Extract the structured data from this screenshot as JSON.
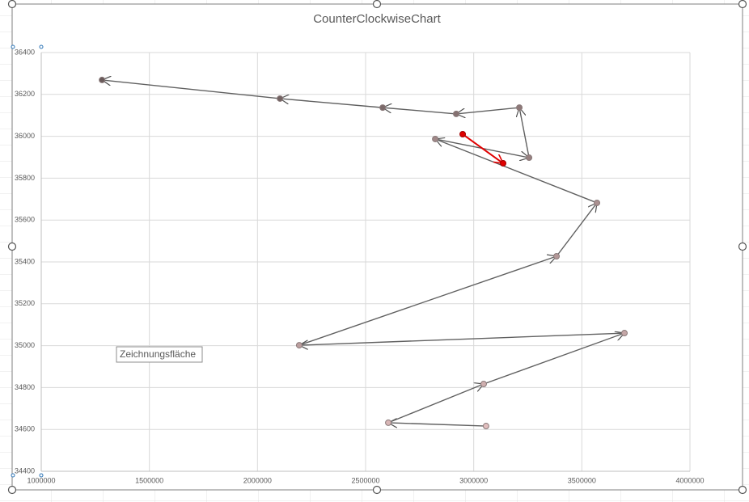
{
  "chart_data": {
    "type": "scatter",
    "title": "CounterClockwiseChart",
    "series": [
      {
        "color": "#606060",
        "x": [
          3057000,
          2605000,
          3046000,
          3697000,
          2193000,
          3383000,
          3570000,
          2822000,
          3256000,
          3211000,
          2919000,
          2579000,
          2104000,
          1281000
        ],
        "values": [
          34616,
          34632,
          34817,
          35060,
          35002,
          35427,
          35682,
          35987,
          35898,
          36137,
          36107,
          36137,
          36180,
          36269
        ]
      },
      {
        "color": "#e00000",
        "x": [
          2949000,
          3136000
        ],
        "values": [
          36010,
          35871
        ]
      }
    ],
    "xlim": [
      1000000,
      4000000
    ],
    "xticks": [
      1000000,
      1500000,
      2000000,
      2500000,
      3000000,
      3500000,
      4000000
    ],
    "ylim": [
      34400,
      36400
    ],
    "yticks": [
      34400,
      34600,
      34800,
      35000,
      35200,
      35400,
      35600,
      35800,
      36000,
      36200,
      36400
    ],
    "grid": true,
    "tooltip": "Zeichnungsfläche"
  }
}
